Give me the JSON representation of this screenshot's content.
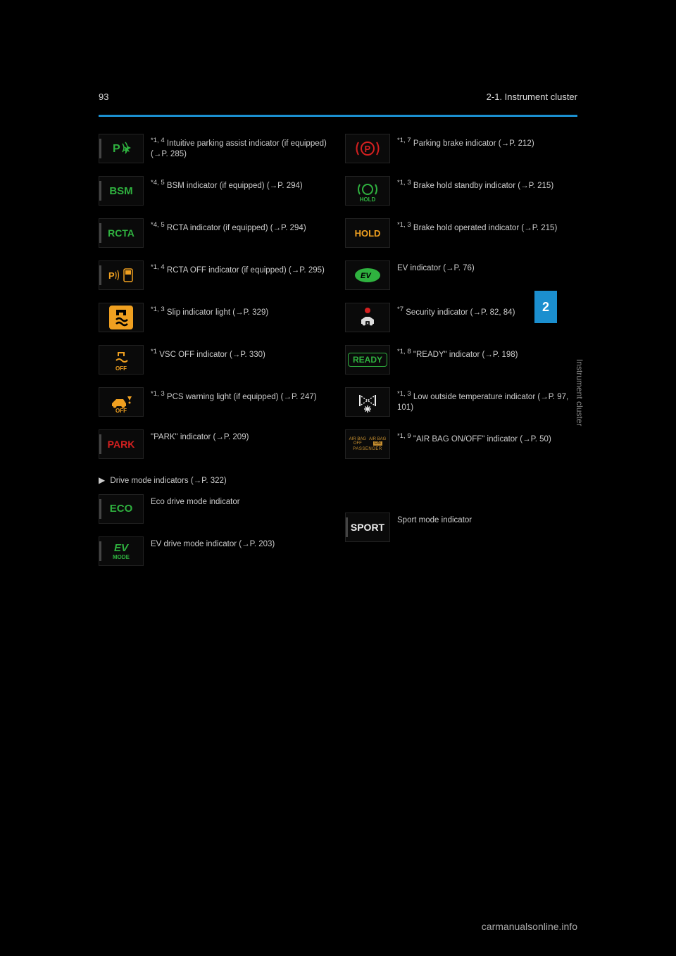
{
  "header": {
    "page_num": "93",
    "section_num": "2-1.",
    "section_title": "Instrument cluster"
  },
  "side_tab": {
    "num": "2",
    "label": "Instrument cluster"
  },
  "colors": {
    "accent": "#1b8fcf",
    "green": "#2fb23f",
    "amber": "#f0a020",
    "red": "#d42020",
    "white": "#eeeeee"
  },
  "left_items": [
    {
      "icon": "parking-assist",
      "sup": "*1, 4",
      "text": "Intuitive parking assist indicator (if equipped)",
      "page": "P. 285"
    },
    {
      "icon": "bsm",
      "sup": "*4, 5",
      "text": "BSM indicator (if equipped)",
      "page": "P. 294"
    },
    {
      "icon": "rcta",
      "sup": "*4, 5",
      "text": "RCTA indicator (if equipped)",
      "page": "P. 294"
    },
    {
      "icon": "rcta-off",
      "sup": "*1, 4",
      "text": "RCTA OFF indicator (if equipped)",
      "page": "P. 295"
    },
    {
      "icon": "slip",
      "sup": "*1, 3",
      "text": "Slip indicator light",
      "page": "P. 329"
    },
    {
      "icon": "vsc-off",
      "sup": "*1",
      "text": "VSC OFF indicator",
      "page": "P. 330"
    },
    {
      "icon": "pcs",
      "sup": "*1, 3",
      "text": "PCS warning light (if equipped)",
      "page": "P. 247"
    },
    {
      "icon": "park",
      "sup": "",
      "text": "\"PARK\" indicator",
      "page": "P. 209"
    }
  ],
  "right_items": [
    {
      "icon": "parking-brake",
      "sup": "*1, 7",
      "text": "Parking brake indicator",
      "page": "P. 212"
    },
    {
      "icon": "brake-hold-standby",
      "sup": "*1, 3",
      "text": "Brake hold standby indicator",
      "page": "P. 215"
    },
    {
      "icon": "brake-hold-operated",
      "sup": "*1, 3",
      "text": "Brake hold operated indicator",
      "page": "P. 215"
    },
    {
      "icon": "ev",
      "sup": "",
      "text": "EV indicator",
      "page": "P. 76"
    },
    {
      "icon": "security",
      "sup": "*7",
      "text": "Security indicator",
      "page": "P. 82, 84"
    },
    {
      "icon": "ready",
      "sup": "*1, 8",
      "text": "\"READY\" indicator",
      "page": "P. 198"
    },
    {
      "icon": "low-temp",
      "sup": "*1, 3",
      "text": "Low outside temperature indicator",
      "page": "P. 97, 101"
    },
    {
      "icon": "airbag",
      "sup": "*1, 9",
      "text": "\"AIR BAG ON/OFF\" indicator",
      "page": "P. 50"
    }
  ],
  "drivemode_label": "Drive mode indicators",
  "drivemode_page": "P. 322",
  "drivemode": [
    {
      "icon": "eco",
      "text": "Eco drive mode indicator"
    },
    {
      "icon": "ev-mode",
      "text": "EV drive mode indicator",
      "page": "P. 203"
    },
    {
      "icon": "sport",
      "text": "Sport mode indicator"
    }
  ],
  "footer": "carmanualsonline.info"
}
